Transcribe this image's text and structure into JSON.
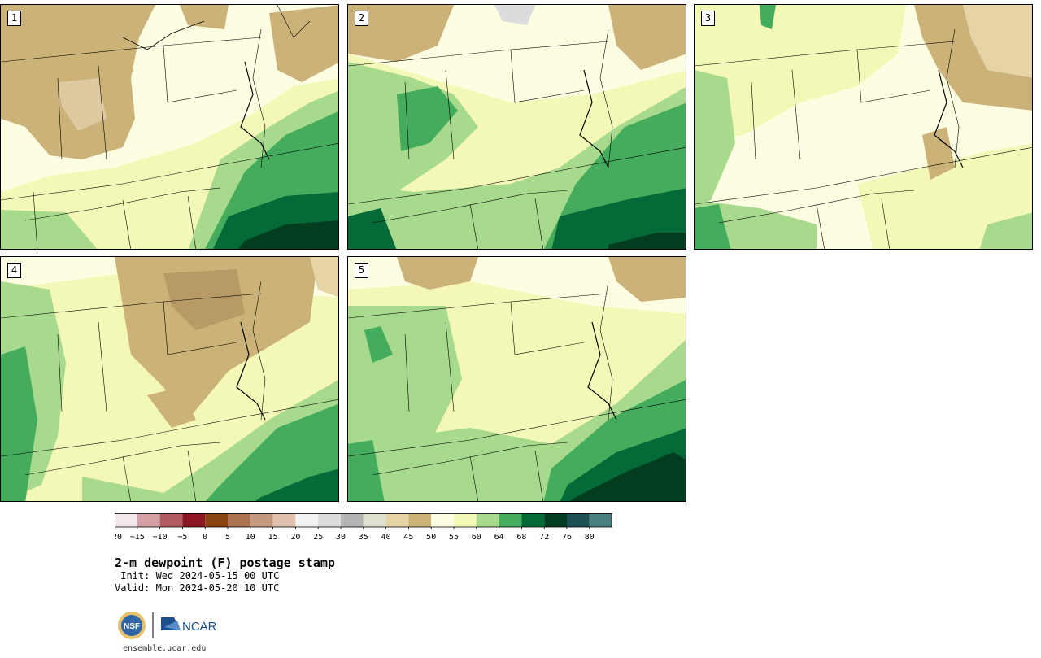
{
  "panels": [
    {
      "label": "1",
      "theme": "dry_north"
    },
    {
      "label": "2",
      "theme": "humid_west"
    },
    {
      "label": "3",
      "theme": "dry_east"
    },
    {
      "label": "4",
      "theme": "mixed"
    },
    {
      "label": "5",
      "theme": "humid_south"
    }
  ],
  "colorbar": {
    "bins": [
      {
        "color": "#f3e8ea"
      },
      {
        "color": "#d4a0a6"
      },
      {
        "color": "#b05c62"
      },
      {
        "color": "#8c1621"
      },
      {
        "color": "#8b4513"
      },
      {
        "color": "#ab7350"
      },
      {
        "color": "#c49a7f"
      },
      {
        "color": "#dfc1ae"
      },
      {
        "color": "#f2f2f2"
      },
      {
        "color": "#dcdcdc"
      },
      {
        "color": "#b4b4b4"
      },
      {
        "color": "#e0e0d0"
      },
      {
        "color": "#e6d4a6"
      },
      {
        "color": "#cbb278"
      },
      {
        "color": "#fdfde2"
      },
      {
        "color": "#f4f8b6"
      },
      {
        "color": "#a7da8c"
      },
      {
        "color": "#44ac5c"
      },
      {
        "color": "#046a38"
      },
      {
        "color": "#033d20"
      },
      {
        "color": "#1e5056"
      },
      {
        "color": "#4b7f80"
      }
    ],
    "tick_labels": [
      "−20",
      "−15",
      "−10",
      "−5",
      "0",
      "5",
      "10",
      "15",
      "20",
      "25",
      "30",
      "35",
      "40",
      "45",
      "50",
      "55",
      "60",
      "64",
      "68",
      "72",
      "76",
      "80"
    ]
  },
  "title": "2-m dewpoint (F) postage stamp",
  "init_line": " Init: Wed 2024-05-15 00 UTC",
  "valid_line": "Valid: Mon 2024-05-20 10 UTC",
  "logos": {
    "left": "NSF",
    "right": "NCAR"
  },
  "site": "ensemble.ucar.edu",
  "colors": {
    "dry": "#cbb278",
    "drydark": "#b89a64",
    "pale": "#fdfde2",
    "light": "#f4f8b6",
    "green1": "#a7da8c",
    "green2": "#44ac5c",
    "green3": "#046a38",
    "green4": "#033d20"
  }
}
